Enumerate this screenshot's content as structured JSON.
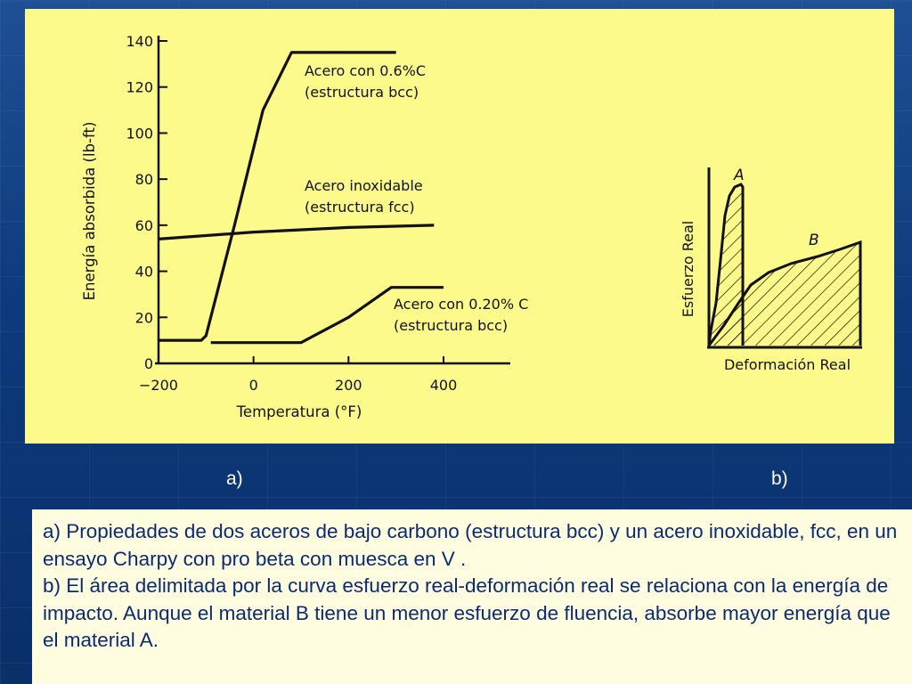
{
  "chart_data": [
    {
      "type": "line",
      "xlabel": "Temperatura (°F)",
      "ylabel": "Energía absorbida (lb-ft)",
      "xlim": [
        -200,
        400
      ],
      "ylim": [
        0,
        140
      ],
      "xticks": [
        "−200",
        "0",
        "200",
        "400"
      ],
      "yticks": [
        "0",
        "20",
        "40",
        "60",
        "80",
        "100",
        "120",
        "140"
      ],
      "grid": false,
      "series": [
        {
          "name_lines": [
            "Acero con 0.6%C",
            "(estructura bcc)"
          ],
          "x": [
            -200,
            -110,
            -100,
            -40,
            20,
            80,
            300
          ],
          "y": [
            10,
            10,
            12,
            60,
            110,
            135,
            135
          ]
        },
        {
          "name_lines": [
            "Acero inoxidable",
            "(estructura fcc)"
          ],
          "x": [
            -200,
            0,
            200,
            380
          ],
          "y": [
            54,
            57,
            59,
            60
          ]
        },
        {
          "name_lines": [
            "Acero con 0.20% C",
            "(estructura bcc)"
          ],
          "x": [
            -90,
            0,
            100,
            200,
            290,
            400
          ],
          "y": [
            9,
            9,
            9,
            20,
            33,
            33
          ]
        }
      ]
    },
    {
      "type": "area",
      "xlabel": "Deformación Real",
      "ylabel": "Esfuerzo Real",
      "series": [
        {
          "name": "A"
        },
        {
          "name": "B"
        }
      ]
    }
  ],
  "labels": {
    "a": "a)",
    "b": "b)"
  },
  "caption": {
    "line_a": "a) Propiedades de dos aceros de bajo carbono (estructura bcc) y un acero inoxidable, fcc, en un ensayo Charpy con pro beta con muesca en V .",
    "line_b": "b) El área delimitada por la curva esfuerzo real-deformación real se relaciona con la energía de impacto. Aunque el material B tiene un menor esfuerzo de fluencia, absorbe mayor energía que el material A."
  },
  "colors": {
    "panel": "#fdfa8c",
    "caption_text": "#0a2b73",
    "ink": "#111111"
  }
}
